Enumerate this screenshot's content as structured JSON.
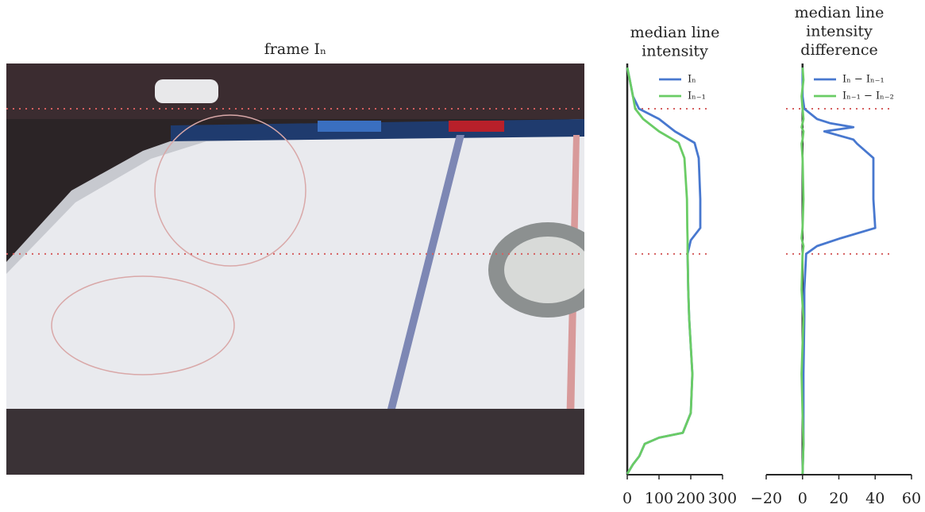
{
  "image": {
    "title": "frame Iₙ"
  },
  "marked_rows": [
    11,
    46.3
  ],
  "chart_data": [
    {
      "type": "line",
      "orientation": "vertical",
      "title": [
        "median line",
        "intensity"
      ],
      "x": [
        1,
        4,
        8,
        11,
        13.5,
        16.5,
        19.3,
        23,
        33,
        40,
        43,
        46.3,
        55,
        62,
        75.5,
        85,
        89.8,
        91,
        92.5,
        95.5,
        97.5,
        99.8
      ],
      "xlim": [
        0,
        100
      ],
      "ylim": [
        0,
        300
      ],
      "yticks": [
        0,
        100,
        200,
        300
      ],
      "legend": "upper right",
      "series": [
        {
          "name": "Iₙ",
          "color": "#4878cf",
          "values": [
            0,
            8,
            18,
            37,
            100,
            150,
            212,
            225,
            230,
            230,
            200,
            190,
            192,
            195,
            205,
            200,
            175,
            100,
            55,
            38,
            18,
            0
          ]
        },
        {
          "name": "Iₙ₋₁",
          "color": "#6acc65",
          "values": [
            0,
            8,
            18,
            25,
            50,
            100,
            162,
            180,
            188,
            189,
            190,
            190,
            192,
            195,
            205,
            200,
            175,
            100,
            55,
            38,
            18,
            0
          ]
        }
      ]
    },
    {
      "type": "line",
      "orientation": "vertical",
      "title": [
        "median line",
        "intensity",
        "difference"
      ],
      "x": [
        1,
        4,
        8,
        11,
        13.5,
        14.5,
        15.5,
        16.5,
        18.5,
        19.5,
        23,
        33,
        40,
        42.5,
        44.4,
        46.3,
        55,
        62,
        75.5,
        85,
        92.5,
        99.8
      ],
      "xlim": [
        0,
        100
      ],
      "ylim": [
        -20,
        60
      ],
      "yticks": [
        {
          "value": -20,
          "label": "−20"
        },
        0,
        20,
        40,
        60
      ],
      "vline": 0,
      "legend": "upper right",
      "series": [
        {
          "name": "Iₙ − Iₙ₋₁",
          "color": "#4878cf",
          "values": [
            0,
            0,
            0,
            1,
            8,
            15,
            28,
            12,
            28,
            30,
            39,
            39,
            40,
            21,
            8,
            2,
            1,
            1,
            0.5,
            0.5,
            0.5,
            0
          ]
        },
        {
          "name": "Iₙ₋₁ − Iₙ₋₂",
          "color": "#6acc65",
          "values": [
            0,
            0.5,
            -0.5,
            0,
            0.5,
            0,
            -0.5,
            0.5,
            0,
            -0.5,
            0,
            0.5,
            0,
            -0.5,
            0.5,
            0,
            -0.5,
            0.5,
            -0.5,
            0,
            0.5,
            0
          ]
        }
      ]
    }
  ]
}
